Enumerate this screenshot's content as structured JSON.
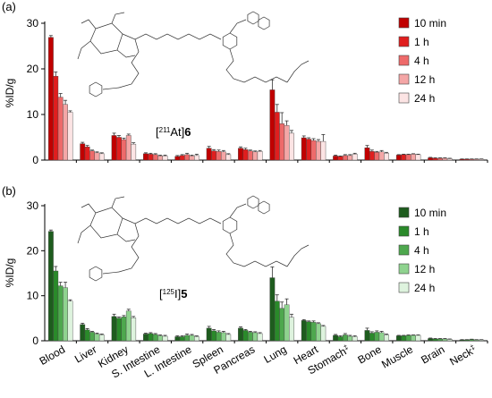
{
  "chart_data": [
    {
      "type": "bar",
      "panel_label": "(a)",
      "compound_label": "[211At]6",
      "compound_label_parts": {
        "open": "[",
        "isotope": "211",
        "element": "At]",
        "number": "6"
      },
      "ylabel": "%ID/g",
      "ylim": [
        0,
        30
      ],
      "yticks": [
        0,
        10,
        20,
        30
      ],
      "categories": [
        "Blood",
        "Liver",
        "Kidney",
        "S. Intestine",
        "L. Intestine",
        "Spleen",
        "Pancreas",
        "Lung",
        "Heart",
        "Stomach",
        "Bone",
        "Muscle",
        "Brain",
        "Neck"
      ],
      "category_notes": {
        "Stomach": "‡",
        "Neck": "‡"
      },
      "legend_position": "top-right",
      "series": [
        {
          "name": "10 min",
          "color": "#c00000",
          "values": [
            26.9,
            3.6,
            5.4,
            1.4,
            0.8,
            2.6,
            2.6,
            15.4,
            4.9,
            0.9,
            2.7,
            1.1,
            0.5,
            0.2
          ],
          "errors": [
            0.4,
            0.3,
            0.5,
            0.2,
            0.2,
            0.4,
            0.3,
            2.2,
            0.4,
            0.2,
            0.5,
            0.1,
            0.1,
            0.05
          ]
        },
        {
          "name": "1 h",
          "color": "#e01e1e",
          "values": [
            18.4,
            2.9,
            5.0,
            1.3,
            1.0,
            2.0,
            2.3,
            10.5,
            4.6,
            0.8,
            1.9,
            1.2,
            0.4,
            0.2
          ],
          "errors": [
            0.9,
            0.3,
            0.4,
            0.2,
            0.2,
            0.3,
            0.3,
            1.7,
            0.3,
            0.1,
            0.3,
            0.1,
            0.1,
            0.05
          ]
        },
        {
          "name": "4 h",
          "color": "#ee6a6a",
          "values": [
            13.8,
            2.0,
            4.5,
            1.2,
            1.2,
            1.9,
            2.0,
            8.0,
            4.3,
            1.0,
            1.7,
            1.2,
            0.4,
            0.2
          ],
          "errors": [
            0.8,
            0.2,
            0.3,
            0.2,
            0.3,
            0.3,
            0.2,
            2.4,
            0.4,
            0.2,
            0.2,
            0.1,
            0.1,
            0.05
          ]
        },
        {
          "name": "12 h",
          "color": "#f4a6a6",
          "values": [
            12.2,
            1.6,
            5.4,
            0.9,
            0.9,
            1.8,
            1.8,
            7.6,
            4.1,
            1.0,
            1.8,
            1.3,
            0.4,
            0.2
          ],
          "errors": [
            0.9,
            0.2,
            0.3,
            0.2,
            0.2,
            0.3,
            0.2,
            1.0,
            0.4,
            0.2,
            0.3,
            0.1,
            0.1,
            0.05
          ]
        },
        {
          "name": "24 h",
          "color": "#fce4e4",
          "values": [
            10.5,
            1.4,
            3.5,
            0.9,
            1.0,
            1.2,
            1.9,
            5.9,
            4.1,
            1.3,
            1.5,
            1.2,
            0.3,
            0.2
          ],
          "errors": [
            0.3,
            0.2,
            0.3,
            0.2,
            0.3,
            0.2,
            0.2,
            0.6,
            1.5,
            0.2,
            0.2,
            0.1,
            0.1,
            0.05
          ]
        }
      ]
    },
    {
      "type": "bar",
      "panel_label": "(b)",
      "compound_label": "[125I]5",
      "compound_label_parts": {
        "open": "[",
        "isotope": "125",
        "element": "I]",
        "number": "5"
      },
      "ylabel": "%ID/g",
      "ylim": [
        0,
        30
      ],
      "yticks": [
        0,
        10,
        20,
        30
      ],
      "categories": [
        "Blood",
        "Liver",
        "Kidney",
        "S. Intestine",
        "L. Intestine",
        "Spleen",
        "Pancreas",
        "Lung",
        "Heart",
        "Stomach",
        "Bone",
        "Muscle",
        "Brain",
        "Neck"
      ],
      "category_notes": {
        "Stomach": "‡",
        "Neck": "‡"
      },
      "legend_position": "top-right",
      "series": [
        {
          "name": "10 min",
          "color": "#1e5c1e",
          "values": [
            24.3,
            3.6,
            5.4,
            1.5,
            0.9,
            2.8,
            2.8,
            14.0,
            4.5,
            1.2,
            2.3,
            1.1,
            0.5,
            0.2
          ],
          "errors": [
            0.3,
            0.3,
            0.5,
            0.2,
            0.2,
            0.4,
            0.3,
            2.4,
            0.2,
            0.2,
            0.5,
            0.1,
            0.1,
            0.05
          ]
        },
        {
          "name": "1 h",
          "color": "#2a8a2a",
          "values": [
            15.5,
            2.4,
            5.0,
            1.6,
            0.9,
            2.2,
            2.3,
            8.8,
            4.2,
            0.9,
            1.7,
            1.1,
            0.4,
            0.2
          ],
          "errors": [
            1.0,
            0.3,
            0.3,
            0.2,
            0.2,
            0.3,
            0.2,
            1.4,
            0.2,
            0.2,
            0.3,
            0.1,
            0.1,
            0.05
          ]
        },
        {
          "name": "4 h",
          "color": "#4ea84e",
          "values": [
            12.2,
            1.9,
            5.3,
            1.4,
            1.2,
            1.9,
            1.9,
            7.2,
            4.1,
            1.3,
            1.9,
            1.2,
            0.4,
            0.3
          ],
          "errors": [
            0.8,
            0.2,
            0.3,
            0.2,
            0.3,
            0.3,
            0.2,
            1.4,
            0.3,
            0.3,
            0.3,
            0.1,
            0.1,
            0.05
          ]
        },
        {
          "name": "12 h",
          "color": "#8fd38f",
          "values": [
            11.8,
            1.5,
            6.6,
            1.1,
            1.2,
            1.8,
            1.8,
            8.0,
            3.8,
            1.0,
            1.8,
            1.2,
            0.4,
            0.2
          ],
          "errors": [
            1.2,
            0.2,
            0.4,
            0.2,
            0.2,
            0.3,
            0.2,
            1.3,
            0.2,
            0.2,
            0.3,
            0.1,
            0.1,
            0.05
          ]
        },
        {
          "name": "24 h",
          "color": "#def3de",
          "values": [
            8.8,
            1.3,
            5.1,
            1.0,
            0.9,
            1.4,
            1.6,
            5.2,
            3.2,
            0.9,
            1.3,
            1.2,
            0.3,
            0.2
          ],
          "errors": [
            0.3,
            0.2,
            0.3,
            0.2,
            0.2,
            0.2,
            0.2,
            0.7,
            0.2,
            0.2,
            0.2,
            0.1,
            0.1,
            0.05
          ]
        }
      ]
    }
  ]
}
